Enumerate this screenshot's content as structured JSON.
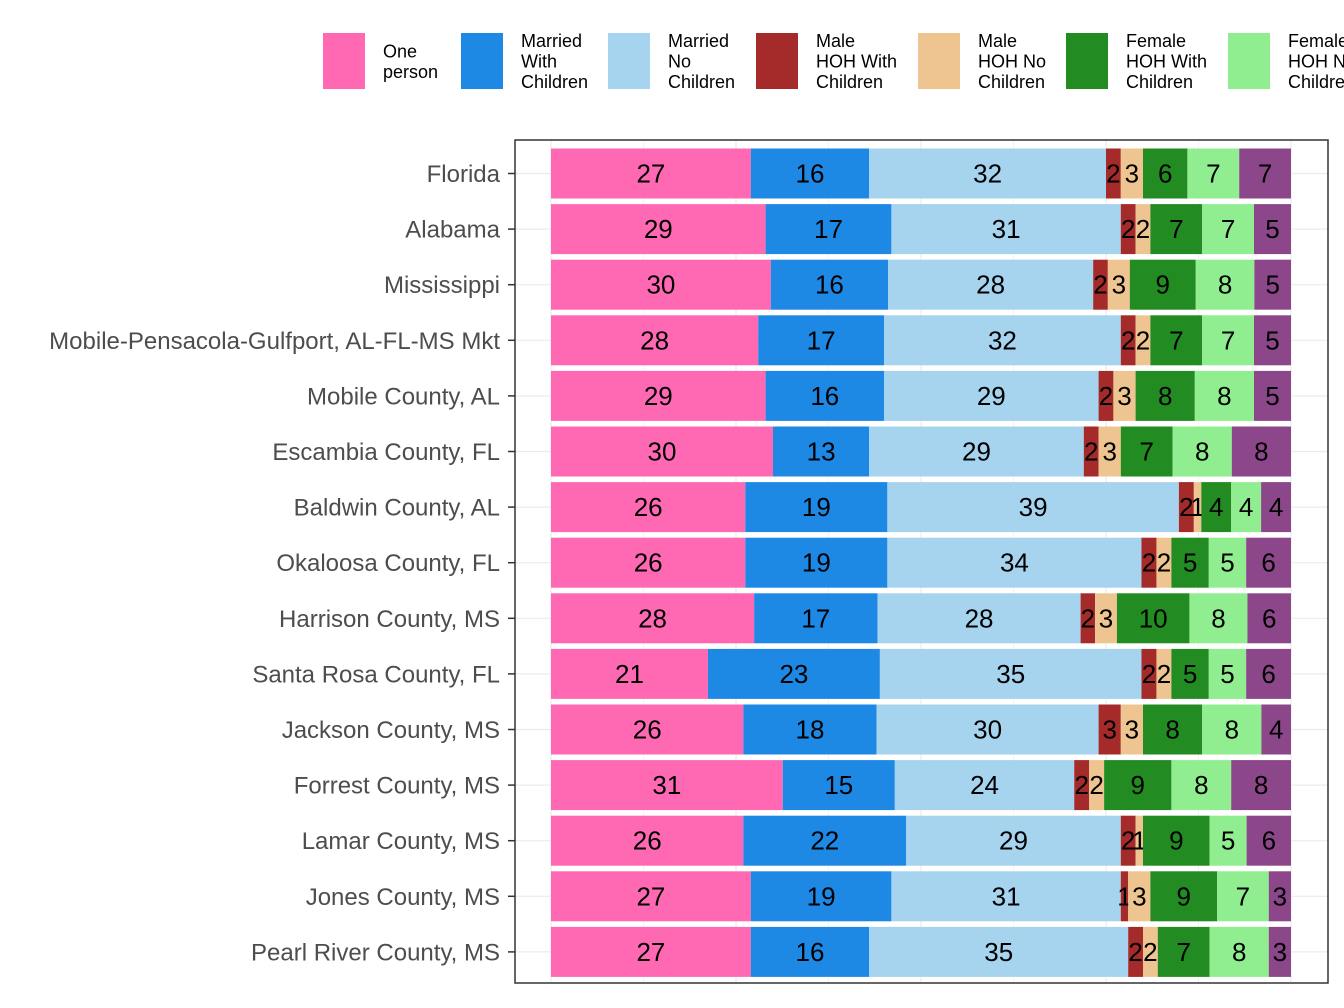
{
  "chart_data": {
    "type": "bar",
    "orientation": "horizontal",
    "stacked": true,
    "normalized_to": 100,
    "categories": [
      "Florida",
      "Alabama",
      "Mississippi",
      "Mobile-Pensacola-Gulfport, AL-FL-MS Mkt",
      "Mobile County, AL",
      "Escambia County, FL",
      "Baldwin County, AL",
      "Okaloosa County, FL",
      "Harrison County, MS",
      "Santa Rosa County, FL",
      "Jackson County, MS",
      "Forrest County, MS",
      "Lamar County, MS",
      "Jones County, MS",
      "Pearl River County, MS"
    ],
    "series": [
      {
        "name": "One person",
        "color": "#FF69B4",
        "values": [
          27,
          29,
          30,
          28,
          29,
          30,
          26,
          26,
          28,
          21,
          26,
          31,
          26,
          27,
          27
        ]
      },
      {
        "name": "Married With Children",
        "color": "#1E88E5",
        "values": [
          16,
          17,
          16,
          17,
          16,
          13,
          19,
          19,
          17,
          23,
          18,
          15,
          22,
          19,
          16
        ]
      },
      {
        "name": "Married No Children",
        "color": "#A6D3EE",
        "values": [
          32,
          31,
          28,
          32,
          29,
          29,
          39,
          34,
          28,
          35,
          30,
          24,
          29,
          31,
          35
        ]
      },
      {
        "name": "Male HOH With Children",
        "color": "#A52A2A",
        "values": [
          2,
          2,
          2,
          2,
          2,
          2,
          2,
          2,
          2,
          2,
          3,
          2,
          2,
          1,
          2
        ]
      },
      {
        "name": "Male HOH No Children",
        "color": "#EEC591",
        "values": [
          3,
          2,
          3,
          2,
          3,
          3,
          1,
          2,
          3,
          2,
          3,
          2,
          1,
          3,
          2
        ]
      },
      {
        "name": "Female HOH With Children",
        "color": "#228B22",
        "values": [
          6,
          7,
          9,
          7,
          8,
          7,
          4,
          5,
          10,
          5,
          8,
          9,
          9,
          9,
          7
        ]
      },
      {
        "name": "Female HOH No Children",
        "color": "#90EE90",
        "values": [
          7,
          7,
          8,
          7,
          8,
          8,
          4,
          5,
          8,
          5,
          8,
          8,
          5,
          7,
          8
        ]
      },
      {
        "name": "",
        "color": "#8B4789",
        "values": [
          7,
          5,
          5,
          5,
          5,
          8,
          4,
          6,
          6,
          6,
          4,
          8,
          6,
          3,
          3
        ]
      }
    ],
    "legend": {
      "position": "top",
      "entries": [
        {
          "lines": [
            "One",
            "person"
          ],
          "color": "#FF69B4"
        },
        {
          "lines": [
            "Married",
            "With",
            "Children"
          ],
          "color": "#1E88E5"
        },
        {
          "lines": [
            "Married",
            "No",
            "Children"
          ],
          "color": "#A6D3EE"
        },
        {
          "lines": [
            "Male",
            "HOH With",
            "Children"
          ],
          "color": "#A52A2A"
        },
        {
          "lines": [
            "Male",
            "HOH No",
            "Children"
          ],
          "color": "#EEC591"
        },
        {
          "lines": [
            "Female",
            "HOH With",
            "Children"
          ],
          "color": "#228B22"
        },
        {
          "lines": [
            "Female",
            "HOH N",
            "Childre"
          ],
          "color": "#90EE90"
        }
      ]
    },
    "title": "",
    "xlabel": "",
    "ylabel": "",
    "grid": true,
    "xlim": [
      0,
      100
    ]
  }
}
